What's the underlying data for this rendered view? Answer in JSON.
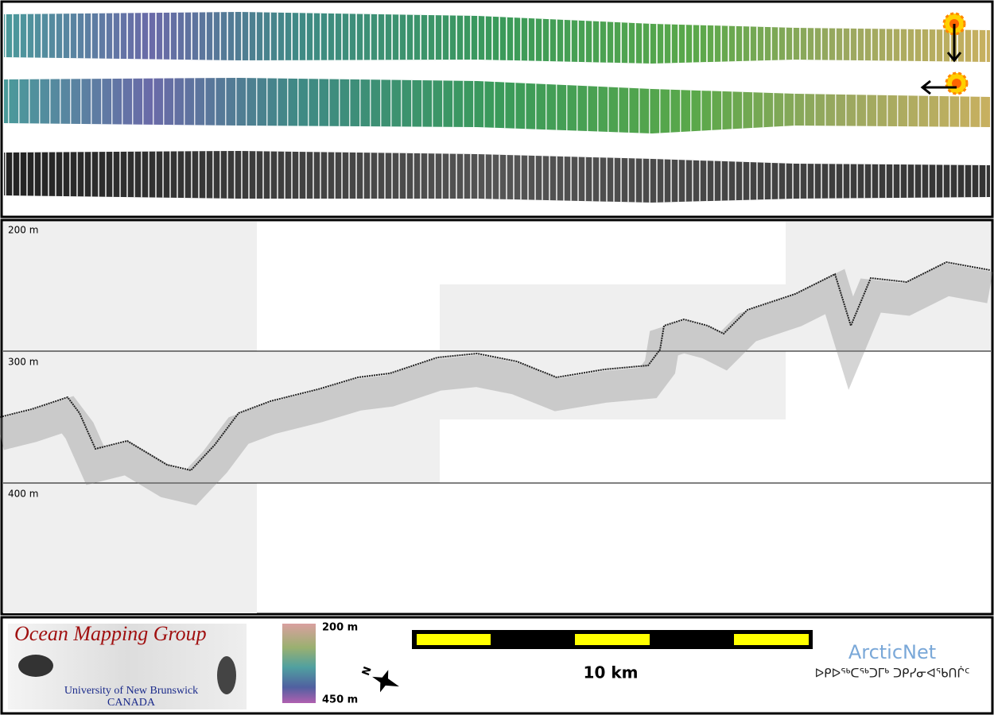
{
  "profile": {
    "depth_labels": [
      "200 m",
      "300 m",
      "400 m"
    ]
  },
  "logo": {
    "title": "Ocean Mapping Group",
    "university": "University of New Brunswick",
    "country": "CANADA"
  },
  "colorbar": {
    "top_label": "200 m",
    "bottom_label": "450 m"
  },
  "north_arrow": {
    "label": "N"
  },
  "scale_bar": {
    "label": "10 km"
  },
  "partner": {
    "name": "ArcticNet",
    "syllabics": "ᐅᑭᐅᖅᑕᖅᑐᒥᒃ ᑐᑭᓯᓂᐊᖃᑎᒌᑦ"
  }
}
